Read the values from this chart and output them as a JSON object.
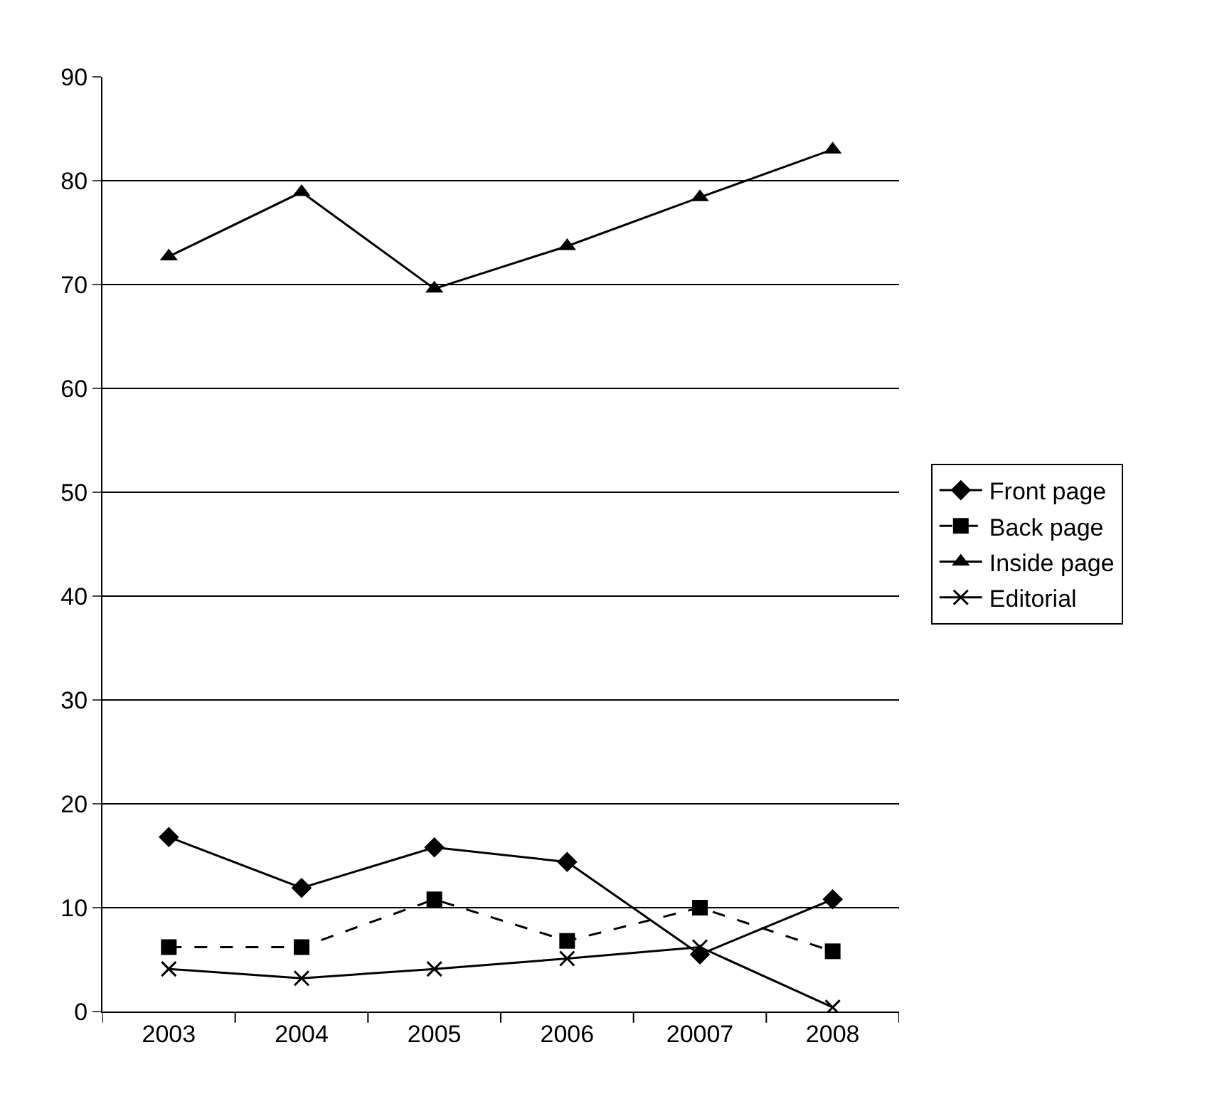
{
  "chart_data": {
    "type": "line",
    "categories": [
      "2003",
      "2004",
      "2005",
      "2006",
      "20007",
      "2008"
    ],
    "series": [
      {
        "name": "Front page",
        "color": "#000000",
        "marker": "diamond",
        "line_style": "solid",
        "values": [
          16.8,
          11.9,
          15.8,
          14.4,
          5.5,
          10.8
        ]
      },
      {
        "name": "Back page",
        "color": "#000000",
        "marker": "square",
        "line_style": "dashed",
        "values": [
          6.2,
          6.2,
          10.8,
          6.8,
          10,
          5.8
        ]
      },
      {
        "name": "Inside page",
        "color": "#000000",
        "marker": "triangle",
        "line_style": "solid",
        "values": [
          72.7,
          78.9,
          69.6,
          73.7,
          78.4,
          83
        ]
      },
      {
        "name": "Editorial",
        "color": "#000000",
        "marker": "cross",
        "line_style": "solid",
        "values": [
          4.1,
          3.2,
          4.1,
          5.1,
          6.2,
          0.4
        ]
      }
    ],
    "ylim": [
      0,
      90
    ],
    "yticks": [
      0,
      10,
      20,
      30,
      40,
      50,
      60,
      70,
      80,
      90
    ],
    "grid": "y",
    "legend": "right"
  }
}
